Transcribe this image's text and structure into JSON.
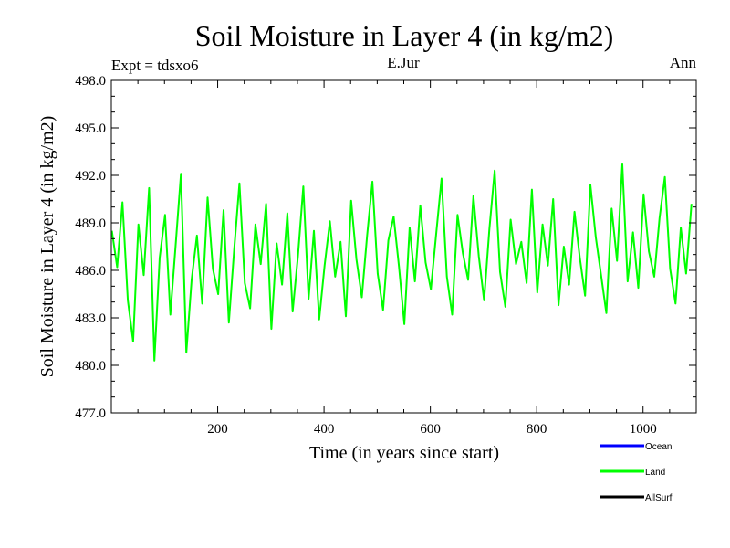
{
  "chart_data": {
    "type": "line",
    "title": "Soil Moisture in Layer 4 (in kg/m2)",
    "subtitle_left": "Expt = tdsxo6",
    "subtitle_center": "E.Jur",
    "subtitle_right": "Ann",
    "xlabel": "Time (in years since start)",
    "ylabel": "Soil Moisture in Layer 4 (in kg/m2)",
    "xlim": [
      0,
      1100
    ],
    "ylim": [
      477.0,
      498.0
    ],
    "xticks": [
      200,
      400,
      600,
      800,
      1000
    ],
    "yticks": [
      477.0,
      480.0,
      483.0,
      486.0,
      489.0,
      492.0,
      495.0,
      498.0
    ],
    "ytick_labels": [
      "477.0",
      "480.0",
      "483.0",
      "486.0",
      "489.0",
      "492.0",
      "495.0",
      "498.0"
    ],
    "series": [
      {
        "name": "Land",
        "color": "#00ff00",
        "x_start": 1,
        "x_step": 10,
        "values": [
          488.5,
          486.2,
          490.3,
          484.1,
          481.5,
          488.9,
          485.7,
          491.2,
          480.3,
          486.8,
          489.5,
          483.2,
          487.6,
          492.1,
          480.8,
          485.4,
          488.2,
          483.9,
          490.6,
          486.1,
          484.5,
          489.8,
          482.7,
          487.3,
          491.5,
          485.2,
          483.6,
          488.9,
          486.4,
          490.2,
          482.3,
          487.7,
          485.1,
          489.6,
          483.4,
          486.9,
          491.3,
          484.2,
          488.5,
          482.9,
          486.3,
          489.1,
          485.6,
          487.8,
          483.1,
          490.4,
          486.7,
          484.3,
          488.2,
          491.6,
          485.8,
          483.5,
          487.9,
          489.4,
          486.2,
          482.6,
          488.7,
          485.3,
          490.1,
          486.5,
          484.8,
          488.3,
          491.8,
          485.6,
          483.2,
          489.5,
          487.1,
          485.4,
          490.7,
          486.9,
          484.1,
          488.6,
          492.3,
          485.9,
          483.7,
          489.2,
          486.4,
          487.8,
          485.2,
          491.1,
          484.6,
          488.9,
          486.3,
          490.5,
          483.8,
          487.5,
          485.1,
          489.7,
          486.8,
          484.4,
          491.4,
          488.1,
          485.7,
          483.3,
          489.9,
          486.6,
          492.7,
          485.3,
          488.4,
          484.9,
          490.8,
          487.2,
          485.6,
          489.3,
          491.9,
          486.1,
          483.9,
          488.7,
          485.8,
          490.2
        ]
      },
      {
        "name": "Ocean",
        "color": "#0000ff",
        "values": []
      },
      {
        "name": "AllSurf",
        "color": "#000000",
        "values": []
      }
    ],
    "legend": [
      {
        "label": "Ocean",
        "color": "#0000ff"
      },
      {
        "label": "Land",
        "color": "#00ff00"
      },
      {
        "label": "AllSurf",
        "color": "#000000"
      }
    ],
    "legend_position": "bottom-right"
  }
}
